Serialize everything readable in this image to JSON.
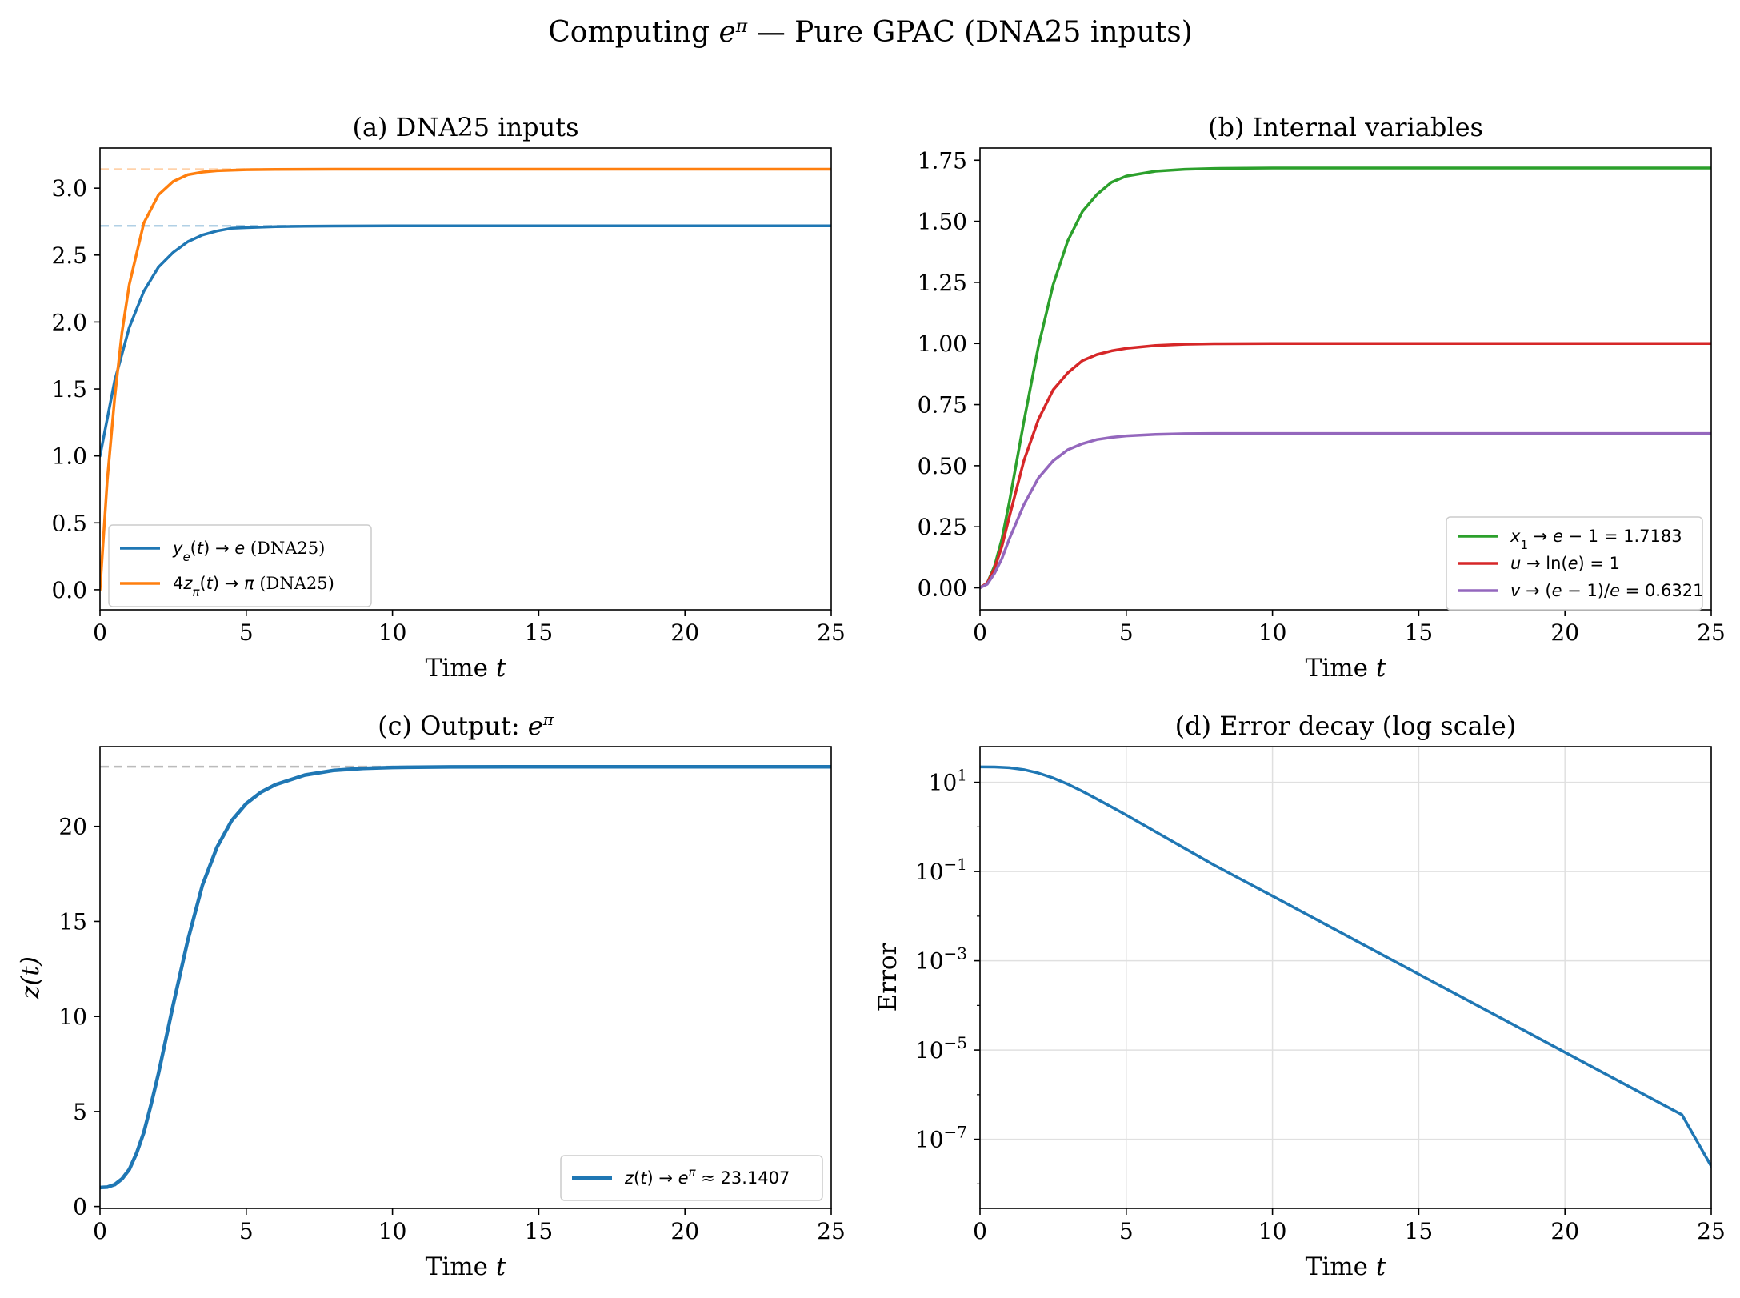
{
  "figure": {
    "title_parts": [
      "Computing ",
      "e",
      "π",
      " — Pure GPAC (DNA25 inputs)"
    ]
  },
  "colors": {
    "blue": "#1f77b4",
    "orange": "#ff7f0e",
    "green": "#2ca02c",
    "red": "#d62728",
    "purple": "#9467bd",
    "grid": "#e0e0e0",
    "ref_gray": "#bbbbbb"
  },
  "chart_data": [
    {
      "id": "a",
      "type": "line",
      "title": "(a) DNA25 inputs",
      "xlabel": "Time t",
      "ylabel": "",
      "xlim": [
        0,
        25
      ],
      "ylim": [
        -0.15,
        3.3
      ],
      "xticks": [
        0,
        5,
        10,
        15,
        20,
        25
      ],
      "xtick_labels": [
        "0",
        "5",
        "10",
        "15",
        "20",
        "25"
      ],
      "yticks": [
        0.0,
        0.5,
        1.0,
        1.5,
        2.0,
        2.5,
        3.0
      ],
      "ytick_labels": [
        "0.0",
        "0.5",
        "1.0",
        "1.5",
        "2.0",
        "2.5",
        "3.0"
      ],
      "grid": false,
      "legend_position": "lower-left",
      "reference_lines": [
        {
          "y": 2.71828
        },
        {
          "y": 3.14159
        }
      ],
      "series": [
        {
          "name": "y_e(t) → e (DNA25)",
          "color": "blue",
          "x": [
            0,
            0.5,
            1,
            1.5,
            2,
            2.5,
            3,
            3.5,
            4,
            4.5,
            5,
            6,
            7,
            8,
            10,
            12,
            15,
            20,
            25
          ],
          "y": [
            1.0,
            1.56,
            1.96,
            2.23,
            2.41,
            2.52,
            2.6,
            2.65,
            2.68,
            2.7,
            2.705,
            2.713,
            2.716,
            2.717,
            2.718,
            2.718,
            2.718,
            2.718,
            2.718
          ]
        },
        {
          "name": "4z_π(t) → π (DNA25)",
          "color": "orange",
          "x": [
            0,
            0.25,
            0.5,
            0.75,
            1,
            1.5,
            2,
            2.5,
            3,
            3.5,
            4,
            5,
            6,
            8,
            10,
            15,
            20,
            25
          ],
          "y": [
            0.0,
            0.82,
            1.43,
            1.92,
            2.28,
            2.74,
            2.95,
            3.05,
            3.1,
            3.12,
            3.13,
            3.138,
            3.14,
            3.1415,
            3.1416,
            3.1416,
            3.1416,
            3.1416
          ]
        }
      ]
    },
    {
      "id": "b",
      "type": "line",
      "title": "(b) Internal variables",
      "xlabel": "Time t",
      "ylabel": "",
      "xlim": [
        0,
        25
      ],
      "ylim": [
        -0.09,
        1.8
      ],
      "xticks": [
        0,
        5,
        10,
        15,
        20,
        25
      ],
      "xtick_labels": [
        "0",
        "5",
        "10",
        "15",
        "20",
        "25"
      ],
      "yticks": [
        0.0,
        0.25,
        0.5,
        0.75,
        1.0,
        1.25,
        1.5,
        1.75
      ],
      "ytick_labels": [
        "0.00",
        "0.25",
        "0.50",
        "0.75",
        "1.00",
        "1.25",
        "1.50",
        "1.75"
      ],
      "grid": false,
      "legend_position": "lower-right",
      "series": [
        {
          "name": "x1 → e − 1 = 1.7183",
          "color": "green",
          "x": [
            0,
            0.25,
            0.5,
            0.75,
            1,
            1.5,
            2,
            2.5,
            3,
            3.5,
            4,
            4.5,
            5,
            6,
            7,
            8,
            10,
            15,
            20,
            25
          ],
          "y": [
            0.0,
            0.02,
            0.09,
            0.2,
            0.35,
            0.68,
            0.99,
            1.24,
            1.42,
            1.54,
            1.61,
            1.66,
            1.685,
            1.705,
            1.713,
            1.716,
            1.718,
            1.718,
            1.718,
            1.718
          ]
        },
        {
          "name": "u → ln(e) = 1",
          "color": "red",
          "x": [
            0,
            0.25,
            0.5,
            0.75,
            1,
            1.5,
            2,
            2.5,
            3,
            3.5,
            4,
            4.5,
            5,
            6,
            7,
            8,
            10,
            15,
            20,
            25
          ],
          "y": [
            0.0,
            0.02,
            0.08,
            0.17,
            0.29,
            0.52,
            0.69,
            0.81,
            0.88,
            0.93,
            0.955,
            0.97,
            0.98,
            0.992,
            0.997,
            0.999,
            1.0,
            1.0,
            1.0,
            1.0
          ]
        },
        {
          "name": "v → (e − 1)/e = 0.6321",
          "color": "purple",
          "x": [
            0,
            0.25,
            0.5,
            0.75,
            1,
            1.5,
            2,
            2.5,
            3,
            3.5,
            4,
            4.5,
            5,
            6,
            7,
            8,
            10,
            15,
            20,
            25
          ],
          "y": [
            0.0,
            0.015,
            0.06,
            0.12,
            0.2,
            0.34,
            0.45,
            0.52,
            0.565,
            0.59,
            0.607,
            0.616,
            0.622,
            0.628,
            0.631,
            0.632,
            0.632,
            0.632,
            0.632,
            0.632
          ]
        }
      ]
    },
    {
      "id": "c",
      "type": "line",
      "title_parts": [
        "(c) Output: ",
        "e",
        "π"
      ],
      "xlabel": "Time t",
      "ylabel": "z(t)",
      "xlim": [
        0,
        25
      ],
      "ylim": [
        -0.1,
        24.2
      ],
      "xticks": [
        0,
        5,
        10,
        15,
        20,
        25
      ],
      "xtick_labels": [
        "0",
        "5",
        "10",
        "15",
        "20",
        "25"
      ],
      "yticks": [
        0,
        5,
        10,
        15,
        20
      ],
      "ytick_labels": [
        "0",
        "5",
        "10",
        "15",
        "20"
      ],
      "grid": false,
      "legend_position": "lower-right",
      "reference_lines": [
        {
          "y": 23.1407
        }
      ],
      "series": [
        {
          "name": "z(t) → e^π ≈ 23.1407",
          "color": "blue",
          "x": [
            0,
            0.25,
            0.5,
            0.75,
            1,
            1.25,
            1.5,
            1.75,
            2,
            2.5,
            3,
            3.5,
            4,
            4.5,
            5,
            5.5,
            6,
            7,
            8,
            9,
            10,
            12,
            15,
            20,
            25
          ],
          "y": [
            1.0,
            1.02,
            1.15,
            1.45,
            1.95,
            2.8,
            3.9,
            5.4,
            7.0,
            10.6,
            14.0,
            16.9,
            18.9,
            20.3,
            21.2,
            21.8,
            22.2,
            22.7,
            22.95,
            23.05,
            23.1,
            23.13,
            23.14,
            23.14,
            23.14
          ]
        }
      ]
    },
    {
      "id": "d",
      "type": "line",
      "title": "(d) Error decay (log scale)",
      "xlabel": "Time t",
      "ylabel": "Error",
      "xlim": [
        0,
        25
      ],
      "yscale": "log",
      "ylim_log10": [
        -8.55,
        1.8
      ],
      "xticks": [
        0,
        5,
        10,
        15,
        20,
        25
      ],
      "xtick_labels": [
        "0",
        "5",
        "10",
        "15",
        "20",
        "25"
      ],
      "ytick_exponents": [
        1,
        -1,
        -3,
        -5,
        -7
      ],
      "ytick_labels": [
        "10^1",
        "10^-1",
        "10^-3",
        "10^-5",
        "10^-7"
      ],
      "grid": true,
      "series": [
        {
          "name": "",
          "color": "blue",
          "x": [
            0,
            0.5,
            1,
            1.5,
            2,
            2.5,
            3,
            3.5,
            4,
            4.5,
            5,
            6,
            7,
            8,
            10,
            12,
            14,
            16,
            18,
            20,
            22,
            24,
            25
          ],
          "y": [
            22.1,
            22.0,
            21.2,
            19.2,
            16.1,
            12.5,
            9.1,
            6.3,
            4.2,
            2.8,
            1.85,
            0.78,
            0.33,
            0.14,
            0.0282,
            0.00562,
            0.00112,
            0.000224,
            4.47e-05,
            8.91e-06,
            1.78e-06,
            3.55e-07,
            2.5e-08
          ]
        }
      ]
    }
  ]
}
